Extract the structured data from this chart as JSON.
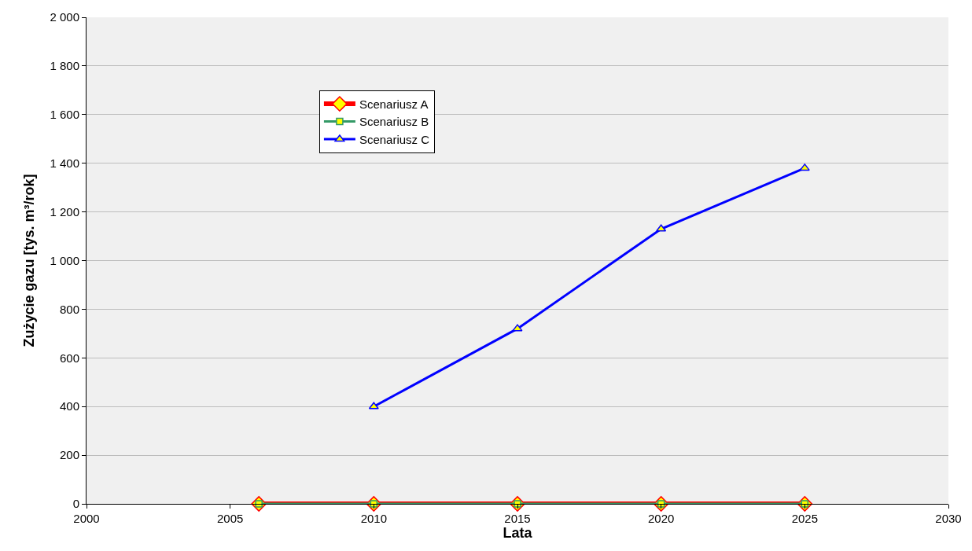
{
  "chart_data": {
    "type": "line",
    "xlabel": "Lata",
    "ylabel": "Zużycie gazu [tys. m³/rok]",
    "x": [
      2006,
      2010,
      2015,
      2020,
      2025
    ],
    "series": [
      {
        "name": "Scenariusz A",
        "color": "#ff0000",
        "marker": "diamond",
        "values": [
          0,
          0,
          0,
          0,
          0
        ]
      },
      {
        "name": "Scenariusz B",
        "color": "#339966",
        "marker": "square",
        "values": [
          0,
          0,
          0,
          0,
          0
        ]
      },
      {
        "name": "Scenariusz C",
        "color": "#0000ff",
        "marker": "triangle",
        "values": [
          null,
          400,
          720,
          1130,
          1380
        ]
      }
    ],
    "xlim": [
      2000,
      2030
    ],
    "xticks": [
      2000,
      2005,
      2010,
      2015,
      2020,
      2025,
      2030
    ],
    "ylim": [
      0,
      2000
    ],
    "yticks": [
      {
        "value": 0,
        "label": "0"
      },
      {
        "value": 200,
        "label": "200"
      },
      {
        "value": 400,
        "label": "400"
      },
      {
        "value": 600,
        "label": "600"
      },
      {
        "value": 800,
        "label": "800"
      },
      {
        "value": 1000,
        "label": "1 000"
      },
      {
        "value": 1200,
        "label": "1 200"
      },
      {
        "value": 1400,
        "label": "1 400"
      },
      {
        "value": 1600,
        "label": "1 600"
      },
      {
        "value": 1800,
        "label": "1 800"
      },
      {
        "value": 2000,
        "label": "2 000"
      }
    ],
    "grid": "y",
    "legend": "top left",
    "line_style": "solid"
  }
}
